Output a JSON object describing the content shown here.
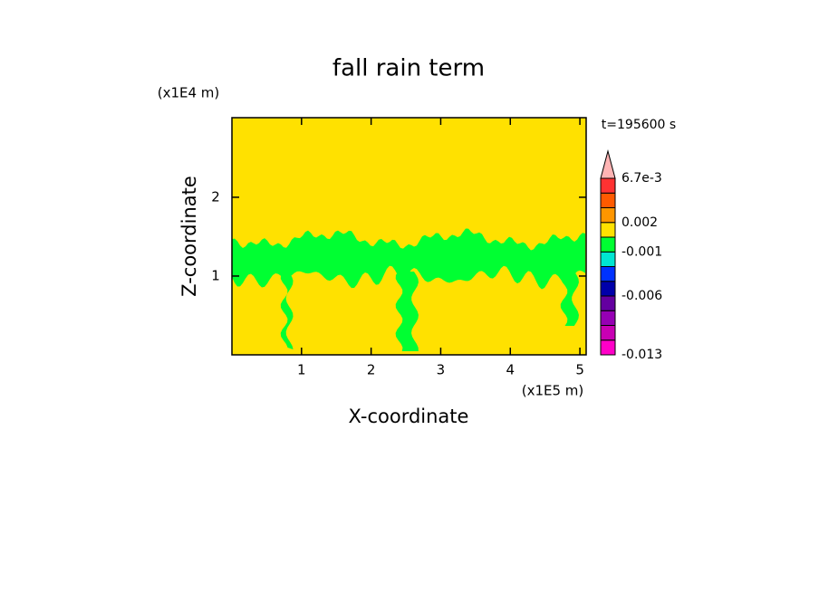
{
  "chart_data": {
    "type": "contour",
    "title": "fall rain term",
    "x_label": "X-coordinate",
    "y_label": "Z-coordinate",
    "x_unit": "(x1E5 m)",
    "y_unit": "(x1E4 m)",
    "time_label": "t=195600 s",
    "xlim": [
      0,
      5.09
    ],
    "ylim": [
      0,
      3.01
    ],
    "xticks": [
      1,
      2,
      3,
      4,
      5
    ],
    "yticks": [
      1,
      2
    ],
    "colorbar": {
      "colors": [
        "#ff00c8",
        "#c800b4",
        "#9600b4",
        "#6400a0",
        "#0000aa",
        "#0032ff",
        "#00e6d2",
        "#00ff32",
        "#ffe100",
        "#ff9600",
        "#ff5a00",
        "#ff3232"
      ],
      "extend_color": "#ffb4b4",
      "levels": [
        "-0.013",
        null,
        null,
        null,
        "-0.006",
        null,
        null,
        "-0.001",
        null,
        "0.002",
        null,
        null,
        "6.7e-3"
      ]
    }
  }
}
